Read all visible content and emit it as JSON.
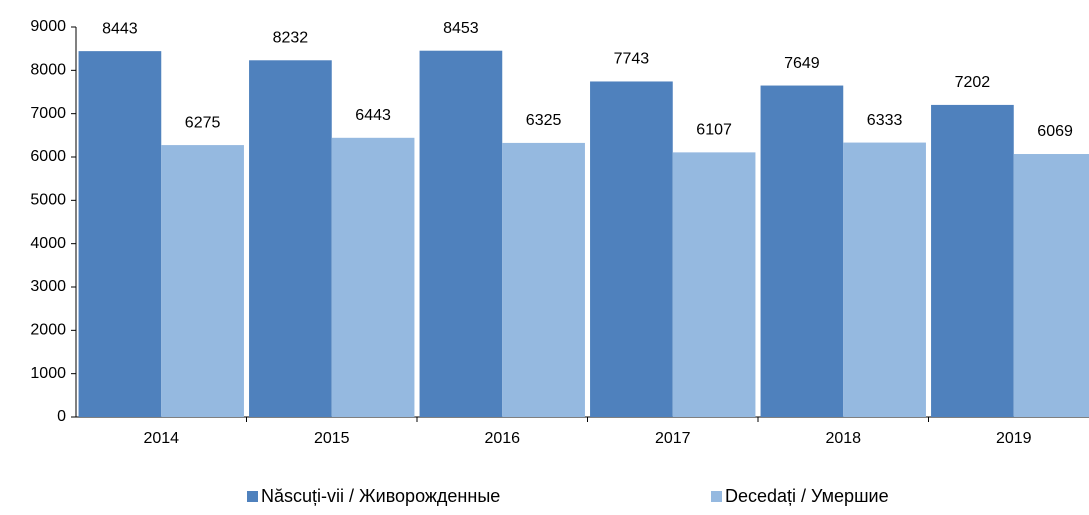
{
  "chart_data": {
    "type": "bar",
    "categories": [
      "2014",
      "2015",
      "2016",
      "2017",
      "2018",
      "2019"
    ],
    "series": [
      {
        "name": "Născuți-vii / Живорожденные",
        "color": "#4f81bd",
        "values": [
          8443,
          8232,
          8453,
          7743,
          7649,
          7202
        ]
      },
      {
        "name": "Decedați / Умершие",
        "color": "#95b9e0",
        "values": [
          6275,
          6443,
          6325,
          6107,
          6333,
          6069
        ]
      }
    ],
    "ylim": [
      0,
      9000
    ],
    "yticks": [
      0,
      1000,
      2000,
      3000,
      4000,
      5000,
      6000,
      7000,
      8000,
      9000
    ],
    "legend": "bottom"
  }
}
